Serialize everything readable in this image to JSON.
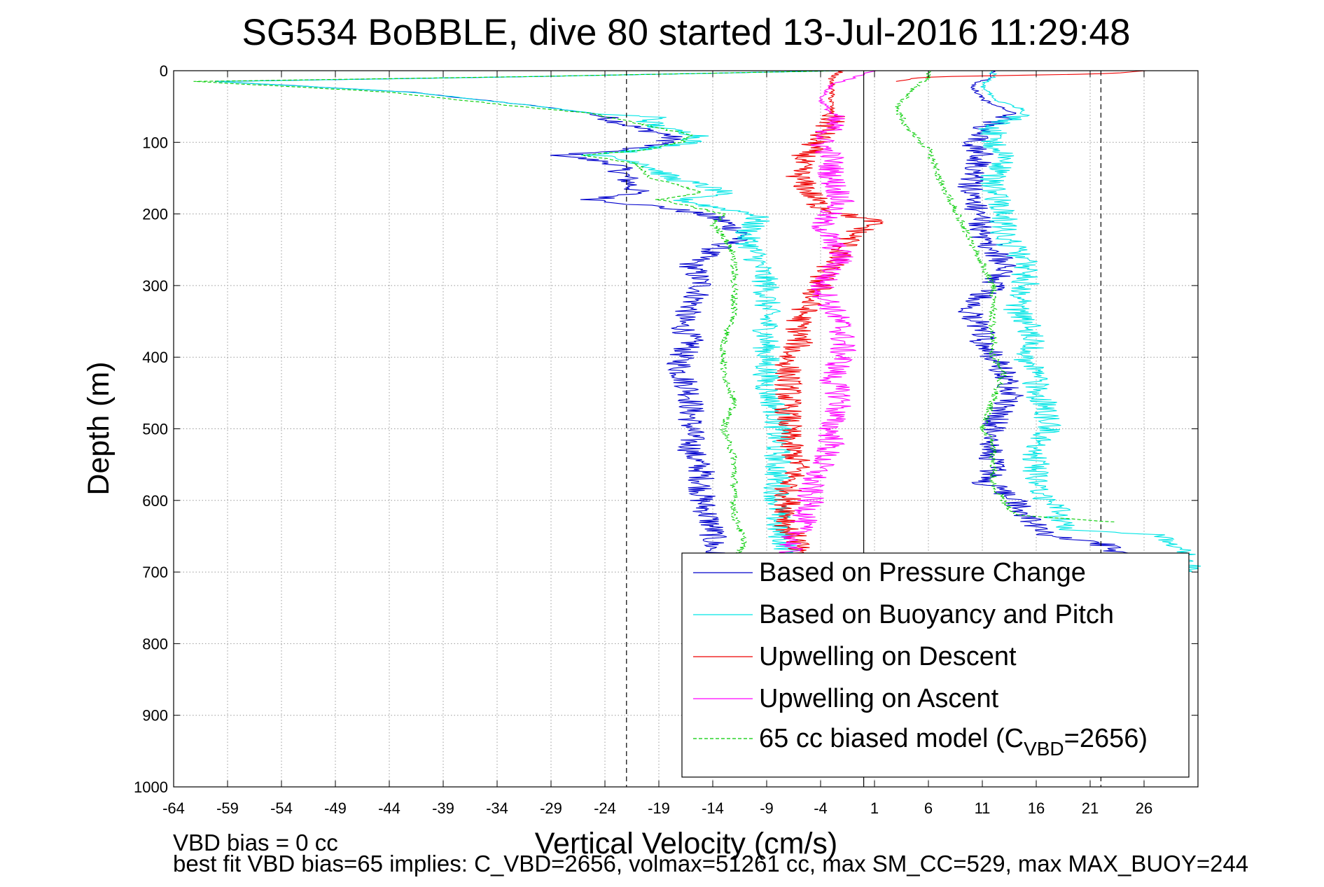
{
  "chart_data": {
    "type": "line",
    "title": "SG534 BoBBLE, dive 80 started 13-Jul-2016 11:29:48",
    "xlabel": "Vertical Velocity (cm/s)",
    "ylabel": "Depth (m)",
    "xlim": [
      -64,
      31
    ],
    "ylim": [
      1000,
      0
    ],
    "y_reversed": true,
    "grid": true,
    "legend_position": "bottom-right",
    "xticks": [
      -64,
      -59,
      -54,
      -49,
      -44,
      -39,
      -34,
      -29,
      -24,
      -19,
      -14,
      -9,
      -4,
      1,
      6,
      11,
      16,
      21,
      26
    ],
    "yticks": [
      0,
      100,
      200,
      300,
      400,
      500,
      600,
      700,
      800,
      900,
      1000
    ],
    "reference_lines": [
      {
        "x": -22,
        "style": "dashed",
        "color": "#000000"
      },
      {
        "x": 0,
        "style": "solid",
        "color": "#000000"
      },
      {
        "x": 22,
        "style": "dashed",
        "color": "#000000"
      }
    ],
    "series": [
      {
        "name": "Based on Pressure Change",
        "color": "#0000cc",
        "style": "solid",
        "points": [
          [
            [
              0,
              -2
            ],
            [
              8,
              -30
            ],
            [
              15,
              -60
            ],
            [
              30,
              -42
            ],
            [
              50,
              -30
            ],
            [
              60,
              -25
            ],
            [
              70,
              -23
            ],
            [
              80,
              -21
            ],
            [
              90,
              -18
            ],
            [
              100,
              -18
            ],
            [
              110,
              -22
            ],
            [
              118,
              -28
            ],
            [
              130,
              -23
            ],
            [
              150,
              -22
            ],
            [
              170,
              -21
            ],
            [
              180,
              -25
            ],
            [
              190,
              -19
            ],
            [
              200,
              -15
            ],
            [
              210,
              -13
            ],
            [
              230,
              -11
            ],
            [
              250,
              -14
            ],
            [
              270,
              -16
            ],
            [
              300,
              -15
            ],
            [
              330,
              -16
            ],
            [
              350,
              -17
            ],
            [
              380,
              -16
            ],
            [
              400,
              -17
            ],
            [
              420,
              -17
            ],
            [
              450,
              -16
            ],
            [
              480,
              -16
            ],
            [
              500,
              -16
            ],
            [
              530,
              -16
            ],
            [
              560,
              -15
            ],
            [
              600,
              -15
            ],
            [
              640,
              -14
            ],
            [
              670,
              -14
            ],
            [
              680,
              -14
            ]
          ],
          [
            [
              680,
              24
            ],
            [
              660,
              22
            ],
            [
              650,
              17
            ],
            [
              640,
              16
            ],
            [
              620,
              15
            ],
            [
              600,
              14
            ],
            [
              580,
              12
            ],
            [
              575,
              11
            ],
            [
              560,
              12
            ],
            [
              530,
              12
            ],
            [
              500,
              12
            ],
            [
              470,
              13
            ],
            [
              450,
              14
            ],
            [
              420,
              13
            ],
            [
              400,
              12
            ],
            [
              380,
              11
            ],
            [
              360,
              11
            ],
            [
              340,
              10
            ],
            [
              330,
              10
            ],
            [
              300,
              12
            ],
            [
              270,
              13
            ],
            [
              250,
              12
            ],
            [
              230,
              11
            ],
            [
              210,
              11
            ],
            [
              180,
              10
            ],
            [
              150,
              10
            ],
            [
              120,
              11
            ],
            [
              100,
              10
            ],
            [
              80,
              11
            ],
            [
              60,
              14
            ],
            [
              40,
              11
            ],
            [
              20,
              10
            ],
            [
              8,
              12
            ],
            [
              0,
              12
            ]
          ]
        ]
      },
      {
        "name": "Based on Buoyancy and Pitch",
        "color": "#00e5e5",
        "style": "solid",
        "points": [
          [
            [
              0,
              -2
            ],
            [
              8,
              -30
            ],
            [
              15,
              -60
            ],
            [
              30,
              -42
            ],
            [
              50,
              -30
            ],
            [
              60,
              -25
            ],
            [
              65,
              -19
            ],
            [
              70,
              -20
            ],
            [
              80,
              -19
            ],
            [
              90,
              -15
            ],
            [
              100,
              -16
            ],
            [
              110,
              -20
            ],
            [
              118,
              -25
            ],
            [
              130,
              -20
            ],
            [
              150,
              -18
            ],
            [
              160,
              -15
            ],
            [
              170,
              -13
            ],
            [
              180,
              -17
            ],
            [
              190,
              -14
            ],
            [
              200,
              -10
            ],
            [
              210,
              -10
            ],
            [
              230,
              -11
            ],
            [
              260,
              -10
            ],
            [
              300,
              -9
            ],
            [
              330,
              -9
            ],
            [
              360,
              -9
            ],
            [
              400,
              -9
            ],
            [
              440,
              -9
            ],
            [
              480,
              -8
            ],
            [
              520,
              -8
            ],
            [
              560,
              -8
            ],
            [
              600,
              -8
            ],
            [
              640,
              -8
            ],
            [
              670,
              -7
            ],
            [
              680,
              -7
            ]
          ],
          [
            [
              700,
              30
            ],
            [
              680,
              30
            ],
            [
              660,
              29
            ],
            [
              648,
              28
            ],
            [
              642,
              19
            ],
            [
              630,
              18
            ],
            [
              610,
              18
            ],
            [
              600,
              17
            ],
            [
              580,
              16
            ],
            [
              560,
              16
            ],
            [
              530,
              16
            ],
            [
              500,
              17
            ],
            [
              470,
              17
            ],
            [
              450,
              16
            ],
            [
              420,
              16
            ],
            [
              400,
              15
            ],
            [
              380,
              16
            ],
            [
              350,
              15
            ],
            [
              330,
              14
            ],
            [
              300,
              15
            ],
            [
              270,
              15
            ],
            [
              250,
              14
            ],
            [
              230,
              13
            ],
            [
              200,
              13
            ],
            [
              170,
              12
            ],
            [
              150,
              12
            ],
            [
              120,
              13
            ],
            [
              100,
              12
            ],
            [
              80,
              12
            ],
            [
              55,
              15
            ],
            [
              40,
              12
            ],
            [
              20,
              11
            ],
            [
              8,
              12
            ],
            [
              0,
              12
            ]
          ]
        ]
      },
      {
        "name": "Upwelling on Descent",
        "color": "#ee0000",
        "style": "solid",
        "points": [
          [
            [
              0,
              -2
            ],
            [
              10,
              -3
            ],
            [
              30,
              -3
            ],
            [
              50,
              -3
            ],
            [
              70,
              -3
            ],
            [
              90,
              -4
            ],
            [
              110,
              -5
            ],
            [
              130,
              -6
            ],
            [
              150,
              -6
            ],
            [
              170,
              -5
            ],
            [
              190,
              -4
            ],
            [
              200,
              -2
            ],
            [
              210,
              1
            ],
            [
              230,
              -1
            ],
            [
              250,
              -2
            ],
            [
              270,
              -3
            ],
            [
              290,
              -4
            ],
            [
              300,
              -4
            ],
            [
              320,
              -5
            ],
            [
              350,
              -6
            ],
            [
              380,
              -6
            ],
            [
              400,
              -7
            ],
            [
              430,
              -7
            ],
            [
              460,
              -7
            ],
            [
              490,
              -7
            ],
            [
              520,
              -7
            ],
            [
              550,
              -6
            ],
            [
              580,
              -7
            ],
            [
              610,
              -7
            ],
            [
              640,
              -7
            ],
            [
              660,
              -6
            ],
            [
              680,
              -7
            ]
          ],
          [
            [
              0,
              26
            ],
            [
              3,
              24
            ],
            [
              5,
              20
            ],
            [
              8,
              8
            ],
            [
              10,
              5
            ],
            [
              15,
              3
            ]
          ]
        ]
      },
      {
        "name": "Upwelling on Ascent",
        "color": "#ff00ff",
        "style": "solid",
        "points": [
          [
            [
              0,
              1
            ],
            [
              10,
              -1
            ],
            [
              20,
              -3
            ],
            [
              40,
              -4
            ],
            [
              60,
              -3
            ],
            [
              80,
              -3
            ],
            [
              100,
              -4
            ],
            [
              120,
              -3
            ],
            [
              150,
              -3
            ],
            [
              180,
              -2
            ],
            [
              210,
              -4
            ],
            [
              240,
              -3
            ],
            [
              260,
              -2
            ],
            [
              300,
              -4
            ],
            [
              330,
              -3
            ],
            [
              360,
              -2
            ],
            [
              400,
              -2
            ],
            [
              430,
              -3
            ],
            [
              460,
              -2
            ],
            [
              490,
              -3
            ],
            [
              520,
              -3
            ],
            [
              550,
              -4
            ],
            [
              580,
              -5
            ],
            [
              610,
              -5
            ],
            [
              640,
              -6
            ],
            [
              670,
              -7
            ],
            [
              680,
              -7
            ]
          ]
        ]
      },
      {
        "name": "65 cc biased model (C_VBD=2656)",
        "color": "#00cc00",
        "style": "dashed",
        "points": [
          [
            [
              0,
              -2
            ],
            [
              8,
              -30
            ],
            [
              15,
              -62
            ],
            [
              30,
              -44
            ],
            [
              50,
              -32
            ],
            [
              60,
              -25
            ],
            [
              70,
              -22
            ],
            [
              80,
              -19
            ],
            [
              90,
              -16
            ],
            [
              100,
              -17
            ],
            [
              110,
              -20
            ],
            [
              118,
              -26
            ],
            [
              130,
              -21
            ],
            [
              150,
              -20
            ],
            [
              160,
              -17
            ],
            [
              170,
              -15
            ],
            [
              180,
              -19
            ],
            [
              190,
              -16
            ],
            [
              200,
              -13
            ],
            [
              215,
              -14
            ],
            [
              230,
              -13
            ],
            [
              260,
              -12
            ],
            [
              300,
              -12
            ],
            [
              340,
              -12
            ],
            [
              380,
              -13
            ],
            [
              420,
              -13
            ],
            [
              460,
              -12
            ],
            [
              500,
              -13
            ],
            [
              540,
              -12
            ],
            [
              580,
              -12
            ],
            [
              620,
              -12
            ],
            [
              660,
              -11
            ],
            [
              680,
              -12
            ]
          ],
          [
            [
              630,
              23
            ],
            [
              620,
              14
            ],
            [
              600,
              13
            ],
            [
              580,
              12
            ],
            [
              550,
              12
            ],
            [
              520,
              12
            ],
            [
              500,
              11
            ],
            [
              460,
              12
            ],
            [
              420,
              13
            ],
            [
              400,
              12
            ],
            [
              380,
              12
            ],
            [
              350,
              12
            ],
            [
              320,
              12
            ],
            [
              300,
              12
            ],
            [
              270,
              11
            ],
            [
              240,
              10
            ],
            [
              210,
              9
            ],
            [
              180,
              8
            ],
            [
              150,
              7
            ],
            [
              110,
              6
            ],
            [
              80,
              4
            ],
            [
              50,
              3
            ],
            [
              20,
              5
            ],
            [
              10,
              6
            ],
            [
              0,
              6
            ]
          ]
        ]
      }
    ]
  },
  "legend": {
    "entries": [
      {
        "label": "Based on Pressure Change",
        "color": "#0000cc",
        "style": "solid"
      },
      {
        "label": "Based on Buoyancy and Pitch",
        "color": "#00e5e5",
        "style": "solid"
      },
      {
        "label": "Upwelling on Descent",
        "color": "#ee0000",
        "style": "solid"
      },
      {
        "label": "Upwelling on Ascent",
        "color": "#ff00ff",
        "style": "solid"
      },
      {
        "label": "65 cc biased model (C",
        "sub": "VBD",
        "suffix": "=2656)",
        "color": "#00cc00",
        "style": "dashed"
      }
    ]
  },
  "footer": {
    "line1": "VBD bias = 0 cc",
    "line2": "best fit VBD bias=65 implies: C_VBD=2656, volmax=51261 cc, max SM_CC=529, max MAX_BUOY=244"
  }
}
